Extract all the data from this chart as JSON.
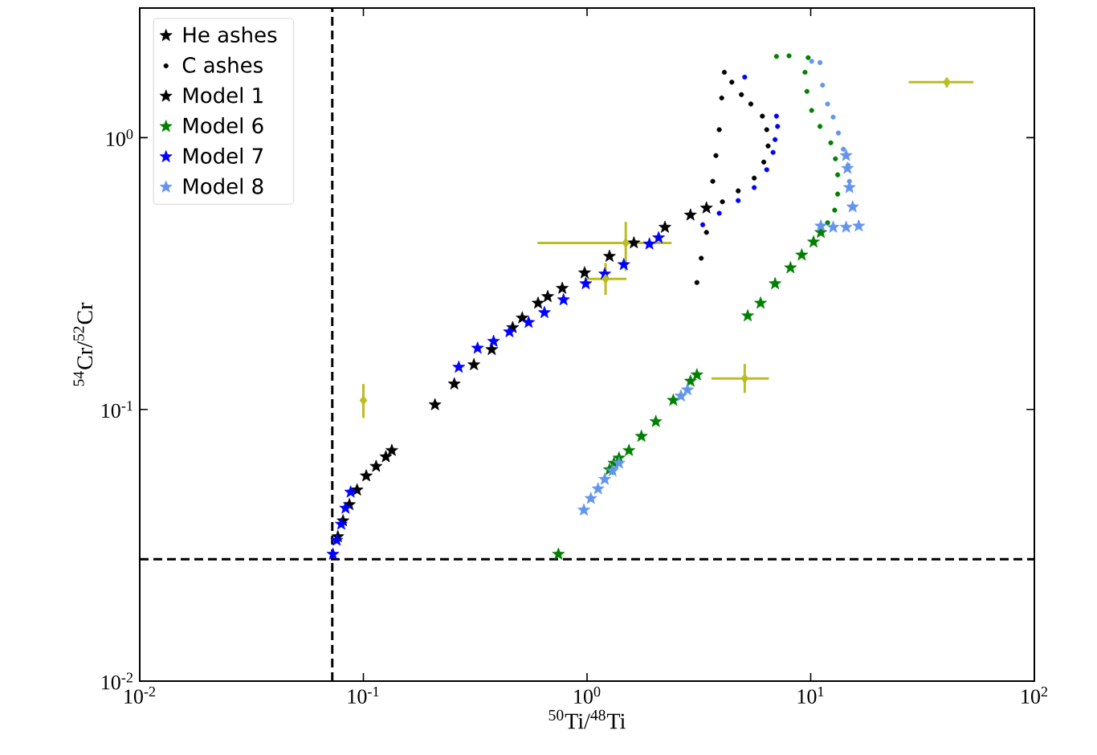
{
  "chart_data": {
    "type": "scatter",
    "xlabel": "$^{50}$Ti/$^{48}$Ti",
    "ylabel": "$^{54}$Cr/$^{52}$Cr",
    "log": "xy",
    "xlim": [
      0.01,
      100
    ],
    "ylim": [
      0.01,
      3
    ],
    "xticks": [
      {
        "value": 0.01,
        "label": "10$^{-2}$"
      },
      {
        "value": 0.1,
        "label": "10$^{-1}$"
      },
      {
        "value": 1,
        "label": "10$^{0}$"
      },
      {
        "value": 10,
        "label": "10$^{1}$"
      },
      {
        "value": 100,
        "label": "10$^{2}$"
      }
    ],
    "yticks": [
      {
        "value": 0.01,
        "label": "10$^{-2}$"
      },
      {
        "value": 0.1,
        "label": "10$^{-1}$"
      },
      {
        "value": 1,
        "label": "10$^{0}$"
      }
    ],
    "legend": "top left",
    "ref_lines": [
      {
        "axis": "x",
        "value": 0.0726,
        "color": "#000000",
        "line_style": "dashed"
      },
      {
        "axis": "y",
        "value": 0.0281,
        "color": "#000000",
        "line_style": "dashed"
      }
    ],
    "series": [
      {
        "name": "He ashes",
        "color": "#000000",
        "marker": "star"
      },
      {
        "name": "C ashes",
        "color": "#000000",
        "marker": "circle"
      },
      {
        "name": "Model 1",
        "color": "#000000",
        "marker": "star",
        "x": [
          0.0769,
          0.0811,
          0.0866,
          0.0937,
          0.103,
          0.114,
          0.126,
          0.134,
          0.209,
          0.255,
          0.312,
          0.375,
          0.465,
          0.513,
          0.604,
          0.667,
          0.775,
          0.975,
          1.26,
          1.62,
          2.23,
          2.9,
          3.42
        ],
        "values": [
          0.034,
          0.0389,
          0.0446,
          0.0505,
          0.0569,
          0.0617,
          0.0669,
          0.0706,
          0.104,
          0.124,
          0.146,
          0.166,
          0.2,
          0.217,
          0.246,
          0.26,
          0.279,
          0.318,
          0.366,
          0.41,
          0.468,
          0.519,
          0.551
        ]
      },
      {
        "color": "#000000",
        "marker": "circle",
        "x": [
          3.1,
          3.24,
          3.42,
          3.53,
          3.65,
          3.77,
          3.9,
          4.0,
          4.11,
          4.44,
          4.9,
          5.4,
          6.08,
          6.36,
          6.45,
          6.17,
          5.59,
          4.74,
          4.03
        ],
        "values": [
          0.293,
          0.36,
          0.448,
          null,
          0.691,
          0.859,
          1.07,
          1.4,
          1.74,
          1.6,
          1.44,
          1.33,
          1.2,
          1.07,
          0.932,
          0.813,
          0.71,
          0.637,
          0.581
        ]
      },
      {
        "name": "Model 6",
        "color": "#008000",
        "marker": "star",
        "x": [
          0.745,
          1.26,
          1.32,
          1.39,
          1.54,
          1.75,
          2.03,
          2.43,
          2.72,
          2.9,
          3.1,
          5.23,
          5.97,
          6.93,
          8.12,
          9.12,
          10.3,
          11.1
        ],
        "values": [
          0.0293,
          0.06,
          0.0634,
          0.0662,
          0.0706,
          0.0796,
          0.0902,
          0.108,
          null,
          0.127,
          0.134,
          0.221,
          0.246,
          0.29,
          0.332,
          0.37,
          0.413,
          0.448
        ]
      },
      {
        "color": "#008000",
        "marker": "circle",
        "x": [
          7.03,
          8.0,
          9.74,
          9.43,
          9.62,
          10.1,
          11.0,
          12.3,
          12.9,
          13.2,
          13.2,
          12.8,
          11.9
        ],
        "values": [
          1.99,
          2.0,
          1.97,
          1.74,
          1.48,
          1.26,
          1.1,
          0.957,
          0.836,
          0.73,
          0.62,
          0.541,
          0.486
        ]
      },
      {
        "name": "Model 7",
        "color": "#0000ff",
        "marker": "star",
        "x": [
          0.0731,
          0.076,
          0.0796,
          0.0832,
          0.0877,
          0.267,
          0.324,
          0.382,
          0.45,
          0.548,
          0.645,
          0.785,
          0.987,
          1.2,
          1.46,
          1.9,
          2.09
        ],
        "values": [
          0.0293,
          0.033,
          0.0378,
          0.0433,
          0.0496,
          0.143,
          0.168,
          0.178,
          0.193,
          0.209,
          0.227,
          0.253,
          0.29,
          0.315,
          0.341,
          0.406,
          0.428
        ]
      },
      {
        "color": "#0000ff",
        "marker": "circle",
        "x": [
          3.29,
          3.9,
          4.74,
          5.59,
          6.36,
          6.79,
          6.93,
          7.11,
          7.03,
          5.07
        ],
        "values": [
          0.478,
          0.527,
          0.587,
          0.655,
          0.762,
          0.883,
          0.984,
          1.1,
          1.2,
          1.67
        ]
      },
      {
        "name": "Model 8",
        "color": "#6495ed",
        "marker": "star",
        "x": [
          0.968,
          1.04,
          1.12,
          1.2,
          1.3,
          1.39,
          2.63,
          2.81,
          11.1,
          12.6,
          14.4,
          16.4,
          15.4,
          14.9,
          14.6,
          14.4
        ],
        "values": [
          0.0426,
          0.047,
          0.051,
          0.0553,
          0.0594,
          0.0634,
          0.112,
          0.118,
          0.473,
          0.468,
          0.468,
          0.473,
          0.556,
          0.655,
          0.771,
          0.859
        ]
      },
      {
        "color": "#6495ed",
        "marker": "circle",
        "x": [
          10.1,
          11.0,
          11.3,
          11.9,
          12.6,
          13.3,
          14.0,
          14.7,
          14.9
        ],
        "values": [
          1.91,
          1.89,
          1.56,
          1.33,
          1.19,
          1.04,
          0.907,
          0.792,
          0.691
        ]
      },
      {
        "color": "#bcbd22",
        "marker": "diamond",
        "x": [
          0.1,
          1.49,
          1.21,
          5.07,
          40.6
        ],
        "values": [
          0.108,
          0.41,
          0.302,
          0.13,
          1.6
        ],
        "errors": [
          [
            0.093,
            0.124
          ],
          [
            0.323,
            0.49
          ],
          [
            0.264,
            0.346
          ],
          [
            0.115,
            0.147
          ],
          [
            1.53,
            1.66
          ]
        ],
        "xerrors": [
          null,
          [
            0.6,
            2.39
          ],
          [
            0.975,
            1.5
          ],
          [
            3.6,
            6.5
          ],
          [
            27.4,
            53.4
          ]
        ]
      }
    ]
  }
}
